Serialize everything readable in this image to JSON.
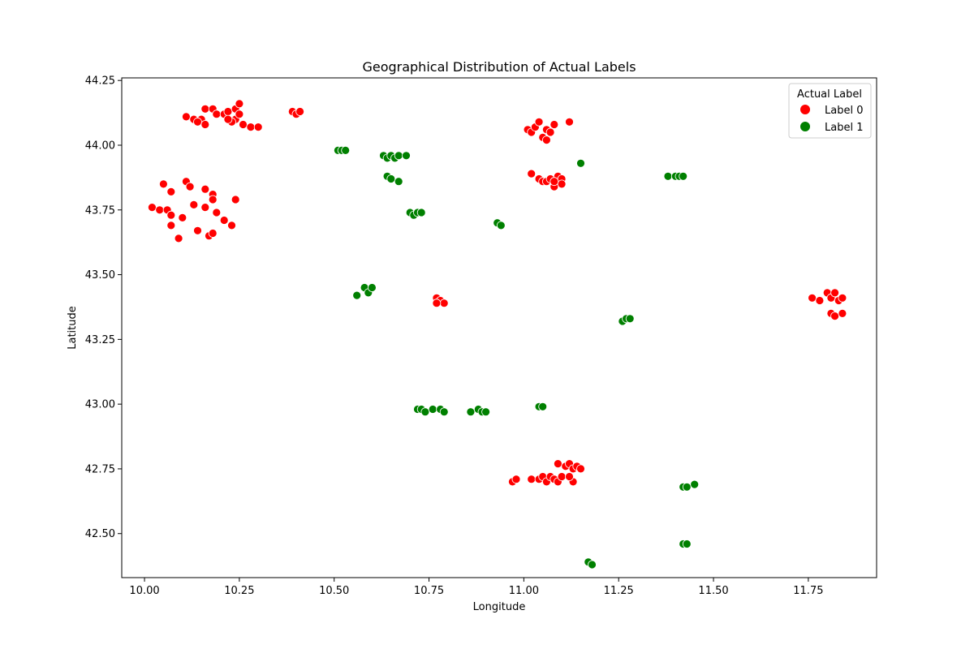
{
  "chart_data": {
    "type": "scatter",
    "title": "Geographical Distribution of Actual Labels",
    "xlabel": "Longitude",
    "ylabel": "Latitude",
    "xlim": [
      9.94,
      11.93
    ],
    "ylim": [
      42.33,
      44.26
    ],
    "xticks": [
      10.0,
      10.25,
      10.5,
      10.75,
      11.0,
      11.25,
      11.5,
      11.75
    ],
    "xtick_labels": [
      "10.00",
      "10.25",
      "10.50",
      "10.75",
      "11.00",
      "11.25",
      "11.50",
      "11.75"
    ],
    "yticks": [
      42.5,
      42.75,
      43.0,
      43.25,
      43.5,
      43.75,
      44.0,
      44.25
    ],
    "ytick_labels": [
      "42.50",
      "42.75",
      "43.00",
      "43.25",
      "43.50",
      "43.75",
      "44.00",
      "44.25"
    ],
    "grid": false,
    "legend": {
      "title": "Actual Label",
      "placement": "top-right"
    },
    "series": [
      {
        "name": "Label 0",
        "color": "#ff0000",
        "points": [
          [
            10.11,
            44.11
          ],
          [
            10.13,
            44.1
          ],
          [
            10.15,
            44.1
          ],
          [
            10.14,
            44.09
          ],
          [
            10.16,
            44.08
          ],
          [
            10.16,
            44.14
          ],
          [
            10.18,
            44.14
          ],
          [
            10.19,
            44.12
          ],
          [
            10.21,
            44.12
          ],
          [
            10.22,
            44.13
          ],
          [
            10.24,
            44.14
          ],
          [
            10.25,
            44.16
          ],
          [
            10.24,
            44.1
          ],
          [
            10.23,
            44.09
          ],
          [
            10.22,
            44.1
          ],
          [
            10.25,
            44.12
          ],
          [
            10.26,
            44.08
          ],
          [
            10.28,
            44.07
          ],
          [
            10.3,
            44.07
          ],
          [
            10.39,
            44.13
          ],
          [
            10.4,
            44.12
          ],
          [
            10.41,
            44.13
          ],
          [
            10.02,
            43.76
          ],
          [
            10.04,
            43.75
          ],
          [
            10.05,
            43.85
          ],
          [
            10.06,
            43.75
          ],
          [
            10.07,
            43.82
          ],
          [
            10.07,
            43.69
          ],
          [
            10.07,
            43.73
          ],
          [
            10.09,
            43.64
          ],
          [
            10.1,
            43.72
          ],
          [
            10.11,
            43.86
          ],
          [
            10.12,
            43.84
          ],
          [
            10.13,
            43.77
          ],
          [
            10.14,
            43.67
          ],
          [
            10.16,
            43.83
          ],
          [
            10.16,
            43.76
          ],
          [
            10.17,
            43.65
          ],
          [
            10.18,
            43.81
          ],
          [
            10.18,
            43.66
          ],
          [
            10.18,
            43.79
          ],
          [
            10.19,
            43.74
          ],
          [
            10.21,
            43.71
          ],
          [
            10.23,
            43.69
          ],
          [
            10.24,
            43.79
          ],
          [
            11.01,
            44.06
          ],
          [
            11.02,
            44.05
          ],
          [
            11.03,
            44.07
          ],
          [
            11.04,
            44.09
          ],
          [
            11.05,
            44.03
          ],
          [
            11.06,
            44.06
          ],
          [
            11.07,
            44.05
          ],
          [
            11.08,
            44.08
          ],
          [
            11.12,
            44.09
          ],
          [
            11.06,
            44.02
          ],
          [
            11.02,
            43.89
          ],
          [
            11.04,
            43.87
          ],
          [
            11.05,
            43.86
          ],
          [
            11.06,
            43.86
          ],
          [
            11.07,
            43.87
          ],
          [
            11.08,
            43.84
          ],
          [
            11.09,
            43.88
          ],
          [
            11.1,
            43.87
          ],
          [
            11.1,
            43.85
          ],
          [
            11.08,
            43.86
          ],
          [
            10.77,
            43.41
          ],
          [
            10.78,
            43.4
          ],
          [
            10.79,
            43.39
          ],
          [
            10.77,
            43.39
          ],
          [
            11.76,
            43.41
          ],
          [
            11.78,
            43.4
          ],
          [
            11.8,
            43.43
          ],
          [
            11.81,
            43.41
          ],
          [
            11.82,
            43.43
          ],
          [
            11.83,
            43.4
          ],
          [
            11.84,
            43.41
          ],
          [
            11.81,
            43.35
          ],
          [
            11.82,
            43.34
          ],
          [
            11.84,
            43.35
          ],
          [
            10.97,
            42.7
          ],
          [
            10.98,
            42.71
          ],
          [
            11.02,
            42.71
          ],
          [
            11.04,
            42.71
          ],
          [
            11.05,
            42.72
          ],
          [
            11.06,
            42.7
          ],
          [
            11.07,
            42.72
          ],
          [
            11.08,
            42.71
          ],
          [
            11.09,
            42.7
          ],
          [
            11.1,
            42.72
          ],
          [
            11.09,
            42.77
          ],
          [
            11.11,
            42.76
          ],
          [
            11.12,
            42.77
          ],
          [
            11.13,
            42.75
          ],
          [
            11.14,
            42.76
          ],
          [
            11.15,
            42.75
          ],
          [
            11.13,
            42.7
          ],
          [
            11.12,
            42.72
          ]
        ]
      },
      {
        "name": "Label 1",
        "color": "#008000",
        "points": [
          [
            10.51,
            43.98
          ],
          [
            10.52,
            43.98
          ],
          [
            10.53,
            43.98
          ],
          [
            10.63,
            43.96
          ],
          [
            10.64,
            43.95
          ],
          [
            10.65,
            43.96
          ],
          [
            10.66,
            43.95
          ],
          [
            10.67,
            43.96
          ],
          [
            10.69,
            43.96
          ],
          [
            10.64,
            43.88
          ],
          [
            10.65,
            43.87
          ],
          [
            10.67,
            43.86
          ],
          [
            10.7,
            43.74
          ],
          [
            10.71,
            43.73
          ],
          [
            10.72,
            43.74
          ],
          [
            10.73,
            43.74
          ],
          [
            10.93,
            43.7
          ],
          [
            10.94,
            43.69
          ],
          [
            10.56,
            43.42
          ],
          [
            10.58,
            43.45
          ],
          [
            10.59,
            43.43
          ],
          [
            10.6,
            43.45
          ],
          [
            11.15,
            43.93
          ],
          [
            11.38,
            43.88
          ],
          [
            11.4,
            43.88
          ],
          [
            11.41,
            43.88
          ],
          [
            11.42,
            43.88
          ],
          [
            11.26,
            43.32
          ],
          [
            11.27,
            43.33
          ],
          [
            11.28,
            43.33
          ],
          [
            10.72,
            42.98
          ],
          [
            10.73,
            42.98
          ],
          [
            10.74,
            42.97
          ],
          [
            10.76,
            42.98
          ],
          [
            10.78,
            42.98
          ],
          [
            10.79,
            42.97
          ],
          [
            10.86,
            42.97
          ],
          [
            10.88,
            42.98
          ],
          [
            10.89,
            42.97
          ],
          [
            10.9,
            42.97
          ],
          [
            11.04,
            42.99
          ],
          [
            11.05,
            42.99
          ],
          [
            11.42,
            42.68
          ],
          [
            11.43,
            42.68
          ],
          [
            11.45,
            42.69
          ],
          [
            11.42,
            42.46
          ],
          [
            11.43,
            42.46
          ],
          [
            11.17,
            42.39
          ],
          [
            11.18,
            42.38
          ]
        ]
      }
    ]
  }
}
